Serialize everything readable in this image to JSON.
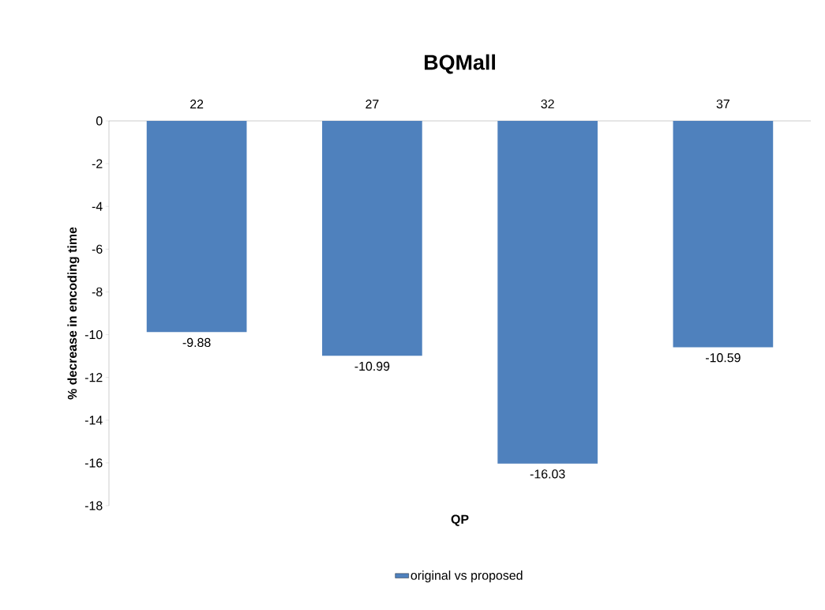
{
  "chart_data": {
    "type": "bar",
    "title": "BQMall",
    "xlabel": "QP",
    "ylabel": "% decrease in encoding time",
    "categories": [
      "22",
      "27",
      "32",
      "37"
    ],
    "series": [
      {
        "name": "original vs proposed",
        "color": "#4f81bd",
        "values": [
          -9.88,
          -10.99,
          -16.03,
          -10.59
        ]
      }
    ],
    "ylim": [
      -18,
      0
    ],
    "yticks": [
      0,
      -2,
      -4,
      -6,
      -8,
      -10,
      -12,
      -14,
      -16,
      -18
    ],
    "data_labels": true,
    "legend": "bottom"
  }
}
